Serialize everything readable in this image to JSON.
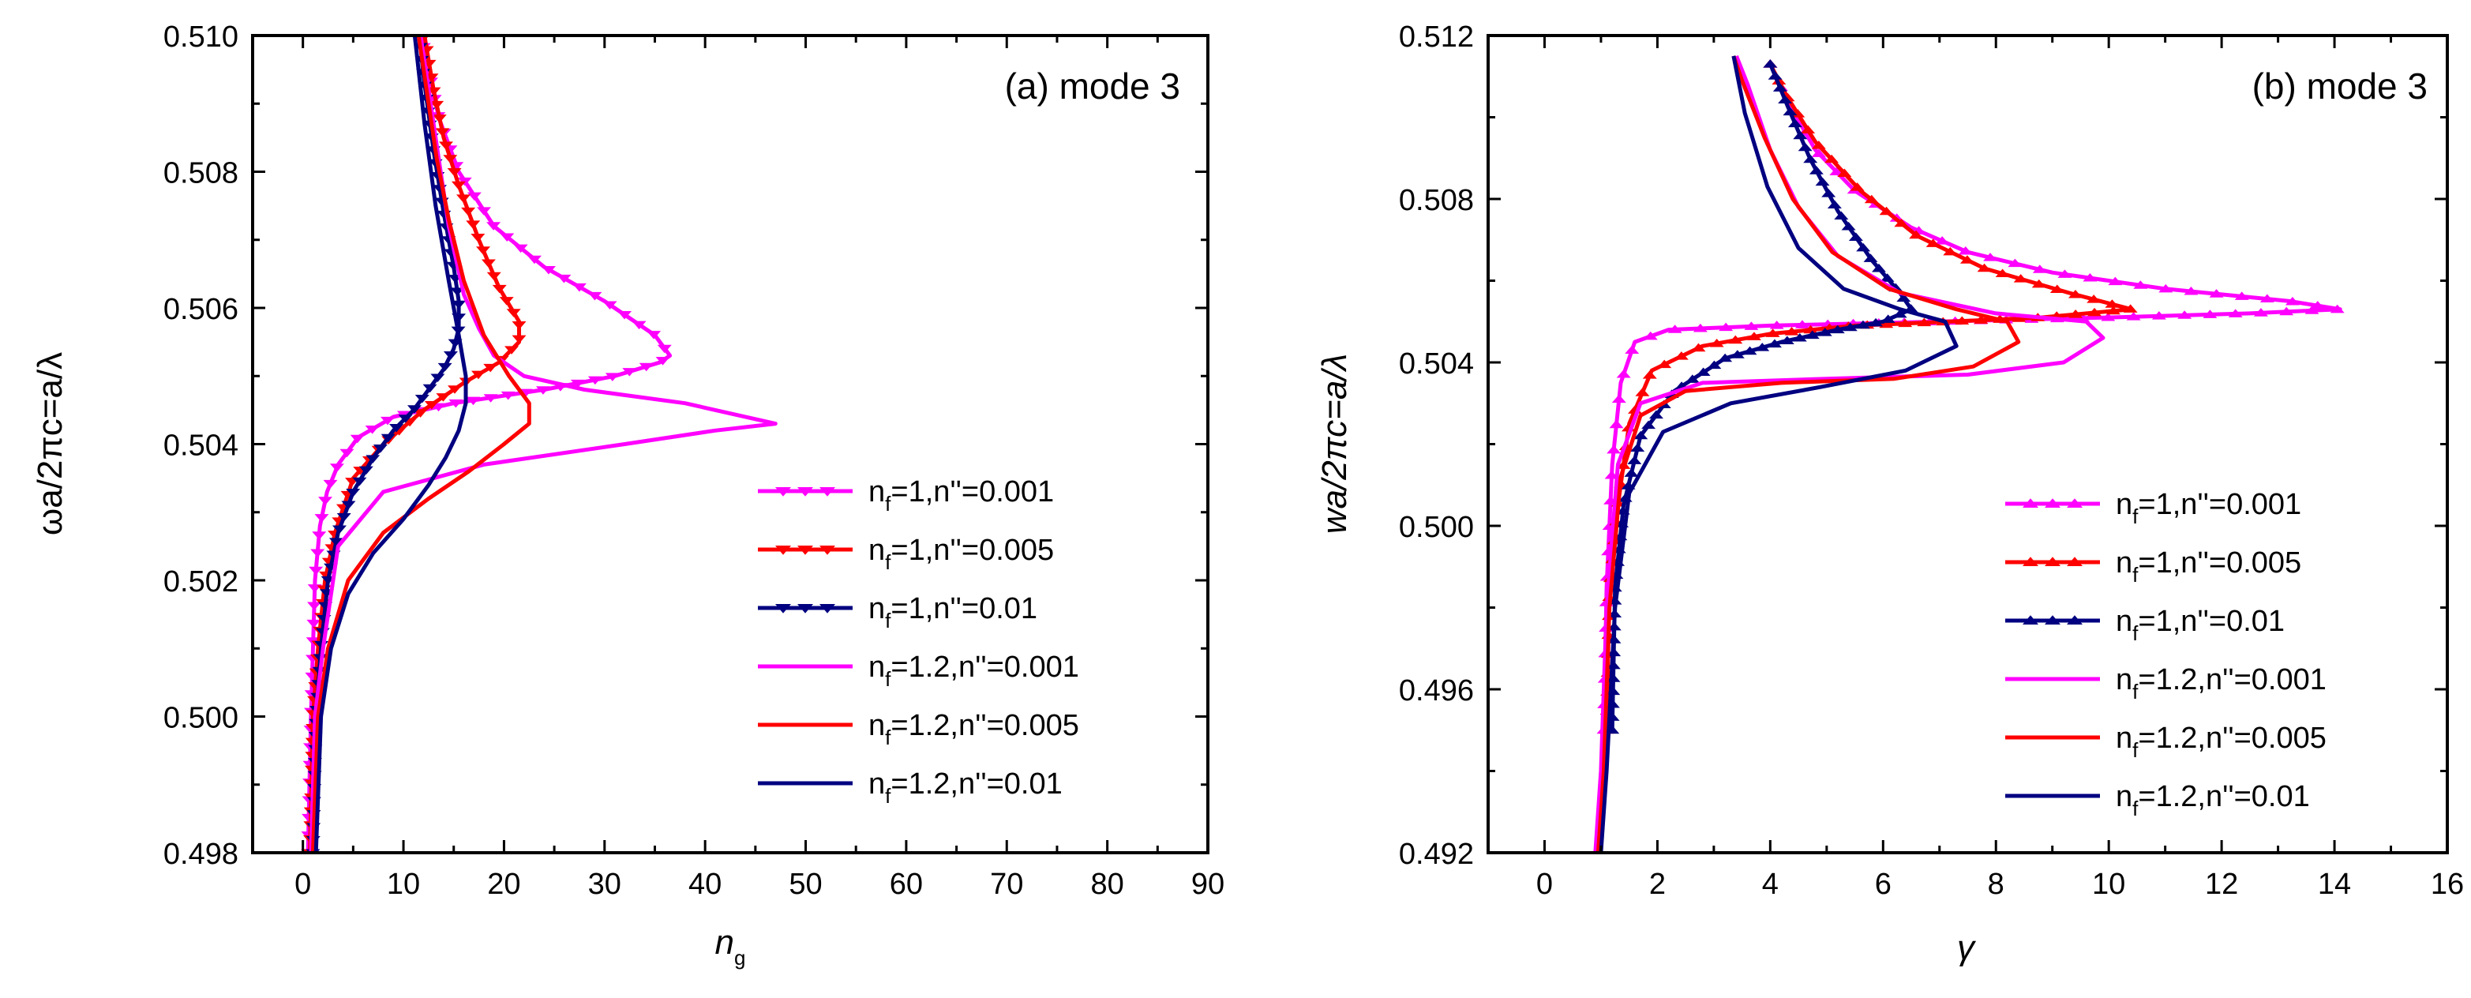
{
  "chart_data": [
    {
      "type": "line",
      "panel_label": "(a) mode 3",
      "xlabel": "n",
      "xlabel_sub": "g",
      "ylabel": "ωa/2πc=a/λ",
      "xlim": [
        -5,
        90
      ],
      "ylim": [
        0.498,
        0.51
      ],
      "xticks": [
        0,
        10,
        20,
        30,
        40,
        50,
        60,
        70,
        80,
        90
      ],
      "yticks": [
        0.498,
        0.5,
        0.502,
        0.504,
        0.506,
        0.508,
        0.51
      ],
      "ytick_labels": [
        "0.498",
        "0.500",
        "0.502",
        "0.504",
        "0.506",
        "0.508",
        "0.510"
      ],
      "legend_position": "lower-right",
      "series": [
        {
          "label": "n_f=1,n''=0.001",
          "label_pre": "n",
          "label_sub": "f",
          "label_post": "=1,n''=0.001",
          "color": "#ff00ff",
          "marker": "triangle-down",
          "x": [
            0.5,
            0.8,
            1.2,
            1.7,
            2.4,
            3.5,
            5.5,
            9,
            15,
            24,
            31,
            35.5,
            36.5,
            35,
            30,
            24,
            19,
            15.5,
            13.5,
            12.5,
            11.5,
            11
          ],
          "y": [
            0.498,
            0.5,
            0.502,
            0.5028,
            0.5033,
            0.5037,
            0.5041,
            0.5044,
            0.5046,
            0.5048,
            0.505,
            0.5052,
            0.5053,
            0.5056,
            0.5061,
            0.5066,
            0.5072,
            0.508,
            0.5088,
            0.5095,
            0.5102,
            0.5106
          ]
        },
        {
          "label": "n_f=1,n''=0.005",
          "label_pre": "n",
          "label_sub": "f",
          "label_post": "=1,n''=0.005",
          "color": "#ff0000",
          "marker": "triangle-down",
          "x": [
            0.7,
            1.0,
            1.5,
            2.2,
            3.2,
            5,
            8,
            12,
            16,
            19.5,
            21.5,
            21.5,
            19.5,
            17.5,
            15.5,
            14,
            13,
            12.2,
            11.5
          ],
          "y": [
            0.498,
            0.5,
            0.501,
            0.502,
            0.5027,
            0.5035,
            0.504,
            0.5045,
            0.5049,
            0.5052,
            0.5055,
            0.5058,
            0.5063,
            0.507,
            0.5078,
            0.5085,
            0.5092,
            0.5099,
            0.5106
          ]
        },
        {
          "label": "n_f=1,n''=0.01",
          "label_pre": "n",
          "label_sub": "f",
          "label_post": "=1,n''=0.01",
          "color": "#000080",
          "marker": "triangle-down",
          "x": [
            1.0,
            1.3,
            1.8,
            2.5,
            3.5,
            5,
            7,
            9,
            11,
            12.5,
            14,
            15,
            15.5,
            15.5,
            15,
            14,
            13,
            12,
            11.2
          ],
          "y": [
            0.498,
            0.5,
            0.501,
            0.502,
            0.5027,
            0.5033,
            0.5038,
            0.5042,
            0.5045,
            0.5048,
            0.5051,
            0.5054,
            0.5057,
            0.5061,
            0.5066,
            0.5074,
            0.5083,
            0.5094,
            0.5106
          ]
        },
        {
          "label": "n_f=1.2,n''=0.001",
          "label_pre": "n",
          "label_sub": "f",
          "label_post": "=1.2,n''=0.001",
          "color": "#ff00ff",
          "marker": "none",
          "x": [
            0.8,
            1.2,
            2,
            3.5,
            8,
            18,
            32,
            41,
            47,
            38,
            28,
            22,
            19,
            17.5,
            16,
            14.5,
            13.5,
            12.5,
            11.5,
            11
          ],
          "y": [
            0.498,
            0.5,
            0.501,
            0.5025,
            0.5033,
            0.5037,
            0.504,
            0.5042,
            0.5043,
            0.5046,
            0.5048,
            0.505,
            0.5053,
            0.5057,
            0.5062,
            0.5072,
            0.5082,
            0.5092,
            0.5102,
            0.5108
          ]
        },
        {
          "label": "n_f=1.2,n''=0.005",
          "label_pre": "n",
          "label_sub": "f",
          "label_post": "=1.2,n''=0.005",
          "color": "#ff0000",
          "marker": "none",
          "x": [
            1.0,
            1.5,
            2.5,
            4.5,
            8,
            12.5,
            16.5,
            20,
            22.5,
            22.5,
            20.5,
            18,
            16,
            14.5,
            13.3,
            12.4,
            11.5,
            10.8
          ],
          "y": [
            0.498,
            0.5,
            0.501,
            0.502,
            0.5027,
            0.5032,
            0.5036,
            0.504,
            0.5043,
            0.5046,
            0.505,
            0.5056,
            0.5064,
            0.5073,
            0.5082,
            0.5091,
            0.51,
            0.5108
          ]
        },
        {
          "label": "n_f=1.2,n''=0.01",
          "label_pre": "n",
          "label_sub": "f",
          "label_post": "=1.2,n''=0.01",
          "color": "#000080",
          "marker": "none",
          "x": [
            1.3,
            1.8,
            2.8,
            4.5,
            7,
            10,
            12.5,
            14.2,
            15.5,
            16.2,
            16.2,
            15.5,
            14.5,
            13.2,
            12.1,
            11.2,
            10.5
          ],
          "y": [
            0.498,
            0.5,
            0.501,
            0.5018,
            0.5024,
            0.5029,
            0.5034,
            0.5038,
            0.5042,
            0.5046,
            0.505,
            0.5056,
            0.5064,
            0.5075,
            0.5087,
            0.5099,
            0.5108
          ]
        }
      ]
    },
    {
      "type": "line",
      "panel_label": "(b) mode 3",
      "xlabel": "γ",
      "ylabel": "wa/2πc=a/λ",
      "xlim": [
        -1,
        16
      ],
      "ylim": [
        0.492,
        0.512
      ],
      "xticks": [
        0,
        2,
        4,
        6,
        8,
        10,
        12,
        14,
        16
      ],
      "yticks": [
        0.492,
        0.496,
        0.5,
        0.504,
        0.508,
        0.512
      ],
      "ytick_labels": [
        "0.492",
        "0.496",
        "0.500",
        "0.504",
        "0.508",
        "0.512"
      ],
      "legend_position": "lower-right",
      "series": [
        {
          "label": "n_f=1,n''=0.001",
          "label_pre": "n",
          "label_sub": "f",
          "label_post": "=1,n''=0.001",
          "color": "#ff00ff",
          "marker": "triangle-up",
          "x": [
            1.05,
            1.1,
            1.2,
            1.35,
            1.6,
            2.2,
            4,
            7,
            10,
            12.5,
            14.1,
            13.2,
            11,
            9,
            7.5,
            6.5,
            5.5,
            4.8,
            4.3,
            4.0
          ],
          "y": [
            0.495,
            0.4985,
            0.5015,
            0.5035,
            0.5045,
            0.5048,
            0.5049,
            0.505,
            0.5051,
            0.5052,
            0.5053,
            0.5055,
            0.5058,
            0.5062,
            0.5067,
            0.5073,
            0.5082,
            0.5092,
            0.5104,
            0.5113
          ]
        },
        {
          "label": "n_f=1,n''=0.005",
          "label_pre": "n",
          "label_sub": "f",
          "label_post": "=1,n''=0.005",
          "color": "#ff0000",
          "marker": "triangle-up",
          "x": [
            1.1,
            1.15,
            1.3,
            1.5,
            1.9,
            2.8,
            4,
            5.5,
            7.2,
            8.8,
            10.4,
            9.3,
            7.8,
            6.6,
            5.6,
            4.8,
            4.3,
            4.0
          ],
          "y": [
            0.495,
            0.4985,
            0.5005,
            0.5025,
            0.5038,
            0.5044,
            0.5047,
            0.5049,
            0.505,
            0.5051,
            0.5053,
            0.5057,
            0.5063,
            0.5071,
            0.5082,
            0.5094,
            0.5105,
            0.5113
          ]
        },
        {
          "label": "n_f=1,n''=0.01",
          "label_pre": "n",
          "label_sub": "f",
          "label_post": "=1,n''=0.01",
          "color": "#000080",
          "marker": "triangle-up",
          "x": [
            1.2,
            1.25,
            1.4,
            1.7,
            2.3,
            3.2,
            4.2,
            5.2,
            6,
            6.5,
            6.3,
            5.8,
            5.2,
            4.7,
            4.3,
            4.0
          ],
          "y": [
            0.495,
            0.4985,
            0.5005,
            0.5022,
            0.5033,
            0.5041,
            0.5045,
            0.5048,
            0.505,
            0.5053,
            0.5057,
            0.5065,
            0.5077,
            0.509,
            0.5103,
            0.5113
          ]
        },
        {
          "label": "n_f=1.2,n''=0.001",
          "label_pre": "n",
          "label_sub": "f",
          "label_post": "=1.2,n''=0.001",
          "color": "#ff00ff",
          "marker": "none",
          "x": [
            0.9,
            1.0,
            1.1,
            1.3,
            1.7,
            2.8,
            5,
            7.5,
            9.2,
            9.9,
            9.6,
            8,
            6.3,
            5.2,
            4.5,
            4.0,
            3.6,
            3.4
          ],
          "y": [
            0.492,
            0.494,
            0.498,
            0.5015,
            0.503,
            0.5035,
            0.5036,
            0.5037,
            0.504,
            0.5046,
            0.505,
            0.5052,
            0.5057,
            0.5066,
            0.5078,
            0.5092,
            0.5108,
            0.5115
          ]
        },
        {
          "label": "n_f=1.2,n''=0.005",
          "label_pre": "n",
          "label_sub": "f",
          "label_post": "=1.2,n''=0.005",
          "color": "#ff0000",
          "marker": "none",
          "x": [
            0.95,
            1.05,
            1.15,
            1.35,
            1.7,
            2.5,
            4.2,
            6.2,
            7.6,
            8.4,
            8.2,
            7.3,
            6.1,
            5.1,
            4.4,
            3.9,
            3.5,
            3.35
          ],
          "y": [
            0.492,
            0.494,
            0.498,
            0.5012,
            0.5027,
            0.5033,
            0.5035,
            0.5036,
            0.5039,
            0.5045,
            0.505,
            0.5053,
            0.5058,
            0.5067,
            0.508,
            0.5095,
            0.5109,
            0.5115
          ]
        },
        {
          "label": "n_f=1.2,n''=0.01",
          "label_pre": "n",
          "label_sub": "f",
          "label_post": "=1.2,n''=0.01",
          "color": "#000080",
          "marker": "none",
          "x": [
            1.0,
            1.1,
            1.25,
            1.5,
            2.1,
            3.3,
            4.9,
            6.4,
            7.3,
            7.1,
            6.3,
            5.3,
            4.5,
            3.95,
            3.55,
            3.35
          ],
          "y": [
            0.492,
            0.494,
            0.498,
            0.5008,
            0.5023,
            0.503,
            0.5034,
            0.5038,
            0.5044,
            0.505,
            0.5053,
            0.5058,
            0.5068,
            0.5083,
            0.5101,
            0.5115
          ]
        }
      ]
    }
  ]
}
